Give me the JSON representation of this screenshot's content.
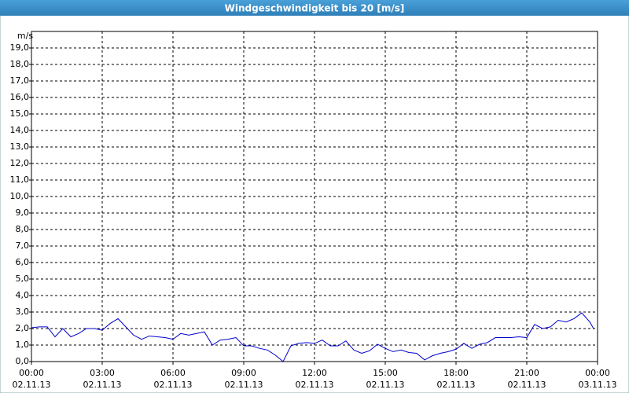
{
  "chart_data": {
    "type": "line",
    "title": "Windgeschwindigkeit bis 20 [m/s]",
    "y_label": "m/s",
    "x": [
      0,
      0.33,
      0.67,
      1,
      1.33,
      1.67,
      2,
      2.33,
      2.67,
      3,
      3.33,
      3.67,
      4,
      4.33,
      4.67,
      5,
      5.33,
      5.67,
      6,
      6.33,
      6.67,
      7,
      7.33,
      7.67,
      8,
      8.33,
      8.67,
      9,
      9.33,
      9.67,
      10,
      10.33,
      10.67,
      11,
      11.33,
      11.67,
      12,
      12.33,
      12.67,
      13,
      13.33,
      13.67,
      14,
      14.33,
      14.67,
      15,
      15.33,
      15.67,
      16,
      16.33,
      16.67,
      17,
      17.33,
      17.67,
      18,
      18.33,
      18.67,
      19,
      19.33,
      19.67,
      20,
      20.33,
      20.67,
      21,
      21.33,
      21.67,
      22,
      22.33,
      22.67,
      23,
      23.33,
      23.67,
      23.83
    ],
    "series": [
      {
        "color": "#0000cc",
        "values": [
          2.05,
          2.1,
          2.1,
          1.5,
          2.0,
          1.5,
          1.7,
          2.0,
          2.0,
          1.9,
          2.3,
          2.6,
          2.1,
          1.6,
          1.35,
          1.55,
          1.5,
          1.45,
          1.35,
          1.7,
          1.6,
          1.7,
          1.8,
          1.0,
          1.3,
          1.35,
          1.45,
          0.95,
          0.95,
          0.8,
          0.7,
          0.4,
          0.0,
          0.95,
          1.1,
          1.15,
          1.1,
          1.3,
          0.95,
          0.95,
          1.25,
          0.7,
          0.5,
          0.65,
          1.05,
          0.8,
          0.6,
          0.7,
          0.55,
          0.5,
          0.1,
          0.35,
          0.5,
          0.6,
          0.75,
          1.1,
          0.8,
          1.05,
          1.15,
          1.45,
          1.45,
          1.45,
          1.5,
          1.45,
          2.25,
          2.0,
          2.1,
          2.5,
          2.4,
          2.6,
          2.95,
          2.4,
          2.0
        ]
      }
    ],
    "xlim": [
      0,
      24
    ],
    "xticks": [
      {
        "value": 0,
        "label": "00:00",
        "date": "02.11.13"
      },
      {
        "value": 3,
        "label": "03:00",
        "date": "02.11.13"
      },
      {
        "value": 6,
        "label": "06:00",
        "date": "02.11.13"
      },
      {
        "value": 9,
        "label": "09:00",
        "date": "02.11.13"
      },
      {
        "value": 12,
        "label": "12:00",
        "date": "02.11.13"
      },
      {
        "value": 15,
        "label": "15:00",
        "date": "02.11.13"
      },
      {
        "value": 18,
        "label": "18:00",
        "date": "02.11.13"
      },
      {
        "value": 21,
        "label": "21:00",
        "date": "02.11.13"
      },
      {
        "value": 24,
        "label": "00:00",
        "date": "03.11.13"
      }
    ],
    "ylim": [
      0,
      20
    ],
    "yticks": [
      {
        "value": 0,
        "label": "0,0"
      },
      {
        "value": 1,
        "label": "1,0"
      },
      {
        "value": 2,
        "label": "2,0"
      },
      {
        "value": 3,
        "label": "3,0"
      },
      {
        "value": 4,
        "label": "4,0"
      },
      {
        "value": 5,
        "label": "5,0"
      },
      {
        "value": 6,
        "label": "6,0"
      },
      {
        "value": 7,
        "label": "7,0"
      },
      {
        "value": 8,
        "label": "8,0"
      },
      {
        "value": 9,
        "label": "9,0"
      },
      {
        "value": 10,
        "label": "10,0"
      },
      {
        "value": 11,
        "label": "11,0"
      },
      {
        "value": 12,
        "label": "12,0"
      },
      {
        "value": 13,
        "label": "13,0"
      },
      {
        "value": 14,
        "label": "14,0"
      },
      {
        "value": 15,
        "label": "15,0"
      },
      {
        "value": 16,
        "label": "16,0"
      },
      {
        "value": 17,
        "label": "17,0"
      },
      {
        "value": 18,
        "label": "18,0"
      },
      {
        "value": 19,
        "label": "19,0"
      }
    ],
    "grid": true
  }
}
